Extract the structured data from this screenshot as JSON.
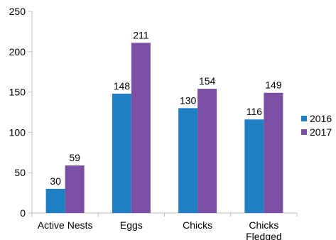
{
  "chart_data": {
    "type": "bar",
    "categories": [
      [
        "Active Nests"
      ],
      [
        "Eggs"
      ],
      [
        "Chicks"
      ],
      [
        "Chicks",
        "Fledged"
      ]
    ],
    "series": [
      {
        "name": "2016",
        "values": [
          30,
          148,
          130,
          116
        ],
        "color": "#1f7fc2"
      },
      {
        "name": "2017",
        "values": [
          59,
          211,
          154,
          149
        ],
        "color": "#7b4fa3"
      }
    ],
    "ylim": [
      0,
      250
    ],
    "yticks": [
      0,
      50,
      100,
      150,
      200,
      250
    ],
    "grid": false,
    "legend_position": "right"
  }
}
